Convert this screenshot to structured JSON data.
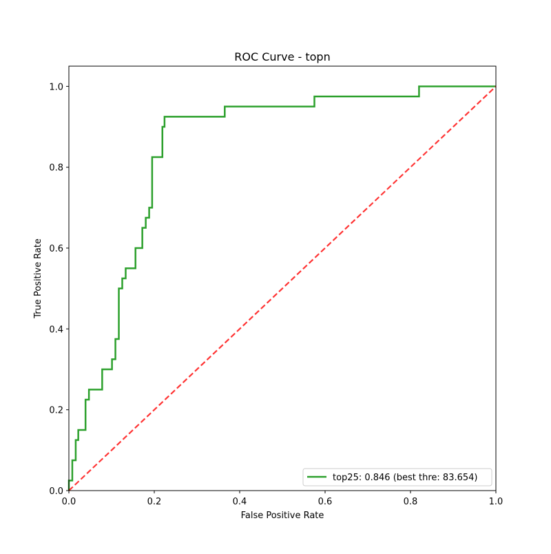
{
  "chart_data": {
    "type": "line",
    "title": "ROC Curve - topn",
    "xlabel": "False Positive Rate",
    "ylabel": "True Positive Rate",
    "xlim": [
      0.0,
      1.0
    ],
    "ylim": [
      0.0,
      1.05
    ],
    "x_ticks": [
      "0.0",
      "0.2",
      "0.4",
      "0.6",
      "0.8",
      "1.0"
    ],
    "y_ticks": [
      "0.0",
      "0.2",
      "0.4",
      "0.6",
      "0.8",
      "1.0"
    ],
    "grid": false,
    "legend_position": "lower-right",
    "series": [
      {
        "name": "top25: 0.846 (best thre: 83.654)",
        "color": "#2ca02c",
        "style": "solid",
        "x": [
          0.0,
          0.0,
          0.008,
          0.008,
          0.016,
          0.016,
          0.022,
          0.022,
          0.039,
          0.039,
          0.047,
          0.047,
          0.078,
          0.078,
          0.101,
          0.101,
          0.109,
          0.109,
          0.117,
          0.117,
          0.125,
          0.125,
          0.133,
          0.133,
          0.156,
          0.156,
          0.172,
          0.172,
          0.18,
          0.18,
          0.188,
          0.188,
          0.195,
          0.195,
          0.219,
          0.219,
          0.224,
          0.224,
          0.365,
          0.365,
          0.575,
          0.575,
          0.82,
          0.82,
          1.0
        ],
        "y": [
          0.0,
          0.025,
          0.025,
          0.075,
          0.075,
          0.125,
          0.125,
          0.15,
          0.15,
          0.225,
          0.225,
          0.25,
          0.25,
          0.3,
          0.3,
          0.325,
          0.325,
          0.375,
          0.375,
          0.5,
          0.5,
          0.525,
          0.525,
          0.55,
          0.55,
          0.6,
          0.6,
          0.65,
          0.65,
          0.675,
          0.675,
          0.7,
          0.7,
          0.825,
          0.825,
          0.9,
          0.9,
          0.925,
          0.925,
          0.95,
          0.95,
          0.975,
          0.975,
          1.0,
          1.0
        ]
      },
      {
        "name": "",
        "color": "#ff0000",
        "style": "dashed",
        "x": [
          0.0,
          1.0
        ],
        "y": [
          0.0,
          1.0
        ]
      }
    ]
  }
}
